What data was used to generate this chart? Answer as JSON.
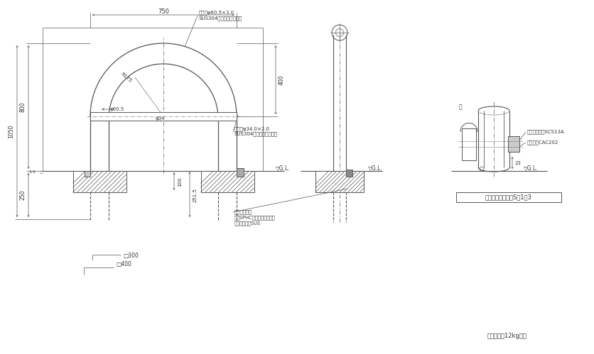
{
  "bg_color": "#ffffff",
  "line_color": "#555555",
  "text_color": "#333333",
  "annotations": {
    "honbody_spec": "本体：φ60.5×3.0",
    "honbody_mat": "SUS304　ヘアライン仕上",
    "yoko_spec": "横棘：φ34.0×2.0",
    "yoko_mat": "SUS304　ヘアライン仕上",
    "dim_750": "750",
    "dim_400": "400",
    "dim_800": "800",
    "dim_1050": "1050",
    "dim_250": "250",
    "dim_1_5": "1.5",
    "dim_100": "100",
    "dim_251_5": "251.5",
    "dim_R175": "R175",
    "dim_phi60_5": "φ60.5",
    "dim_phi34": "φ34",
    "dim_300": "□300",
    "dim_400b": "□400",
    "gl_label": "▽G.L.",
    "gl_label2": "▽G.L.",
    "gl_label3": "▽G.L.",
    "detachment_pipe": "脱着用埋設管",
    "pipe_mat1": "算：SPHC　溶融亜邉めっき",
    "pipe_mat2": "埋設管本体：SUS",
    "lock_pin": "ロックピン：SCS13A",
    "nanking_lock": "南京鍵：CAC202",
    "dim_23": "23",
    "detail_title": "南京鍵部詳細図　S＝1：3",
    "weight": "支柱質量：12kg／本",
    "futa": "蛋"
  }
}
